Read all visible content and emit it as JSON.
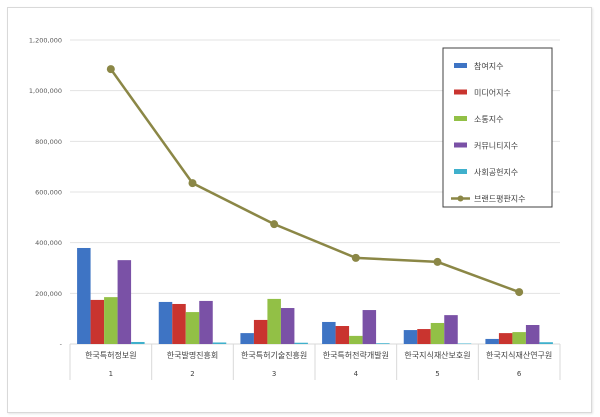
{
  "chart_data": {
    "type": "bar+line",
    "categories": [
      "한국특허정보원",
      "한국발명진흥회",
      "한국특허기술진흥원",
      "한국특허전략개발원",
      "한국지식재산보호원",
      "한국지식재산연구원"
    ],
    "category_ranks": [
      "1",
      "2",
      "3",
      "4",
      "5",
      "6"
    ],
    "ylim": [
      0,
      1200000
    ],
    "yticks": [
      0,
      200000,
      400000,
      600000,
      800000,
      1000000,
      1200000
    ],
    "ytick_labels": [
      "-",
      "200,000",
      "400,000",
      "600,000",
      "800,000",
      "1,000,000",
      "1,200,000"
    ],
    "grid": true,
    "legend_placement": "top-right",
    "series": [
      {
        "name": "참여지수",
        "type": "bar",
        "color": "#3e74c4",
        "values": [
          379000,
          166000,
          43000,
          87000,
          55000,
          20000
        ]
      },
      {
        "name": "미디어지수",
        "type": "bar",
        "color": "#c9342f",
        "values": [
          174000,
          158000,
          95000,
          71000,
          59000,
          43000
        ]
      },
      {
        "name": "소통지수",
        "type": "bar",
        "color": "#92c046",
        "values": [
          185000,
          126000,
          178000,
          32000,
          83000,
          47000
        ]
      },
      {
        "name": "커뮤니티지수",
        "type": "bar",
        "color": "#7a51a6",
        "values": [
          331000,
          170000,
          142000,
          134000,
          114000,
          75000
        ]
      },
      {
        "name": "사회공헌지수",
        "type": "bar",
        "color": "#3fb0cc",
        "values": [
          8000,
          6000,
          5000,
          3000,
          2000,
          7000
        ]
      },
      {
        "name": "브랜드평판지수",
        "type": "line",
        "color": "#8b8746",
        "values": [
          1085000,
          635000,
          473000,
          340000,
          324000,
          205000
        ]
      }
    ]
  }
}
